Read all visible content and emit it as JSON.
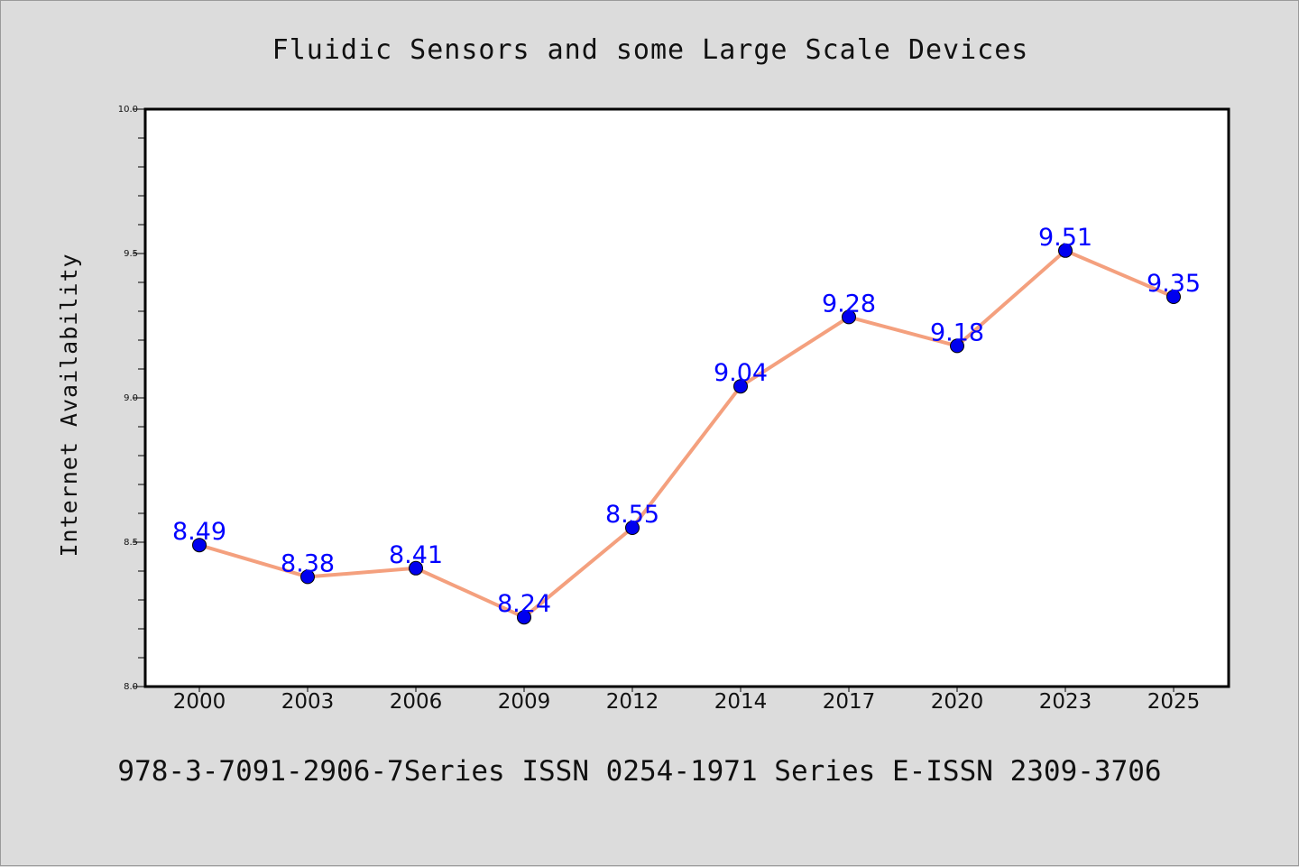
{
  "chart_data": {
    "type": "line",
    "title": "Fluidic Sensors and some Large Scale Devices",
    "xlabel": "",
    "ylabel": "Internet Availability",
    "categories": [
      "2000",
      "2003",
      "2006",
      "2009",
      "2012",
      "2014",
      "2017",
      "2020",
      "2023",
      "2025"
    ],
    "series": [
      {
        "values": [
          8.49,
          8.38,
          8.41,
          8.24,
          8.55,
          9.04,
          9.28,
          9.18,
          9.51,
          9.35
        ],
        "data_labels": [
          "8.49",
          "8.38",
          "8.41",
          "8.24",
          "8.55",
          "9.04",
          "9.28",
          "9.18",
          "9.51",
          "9.35"
        ],
        "line_color": "#f4a07e",
        "marker_color": "#0000ee",
        "label_color": "#0000ff"
      }
    ],
    "ylim": [
      8.0,
      10.0
    ],
    "yticks": [
      "8.0",
      "8.5",
      "9.0",
      "9.5",
      "10.0"
    ],
    "grid": false,
    "legend": "none"
  },
  "footer": {
    "text": "978-3-7091-2906-7Series ISSN 0254-1971 Series E-ISSN 2309-3706"
  },
  "colors": {
    "background": "#dcdcdc",
    "plot_background": "#ffffff",
    "axes": "#000000"
  }
}
